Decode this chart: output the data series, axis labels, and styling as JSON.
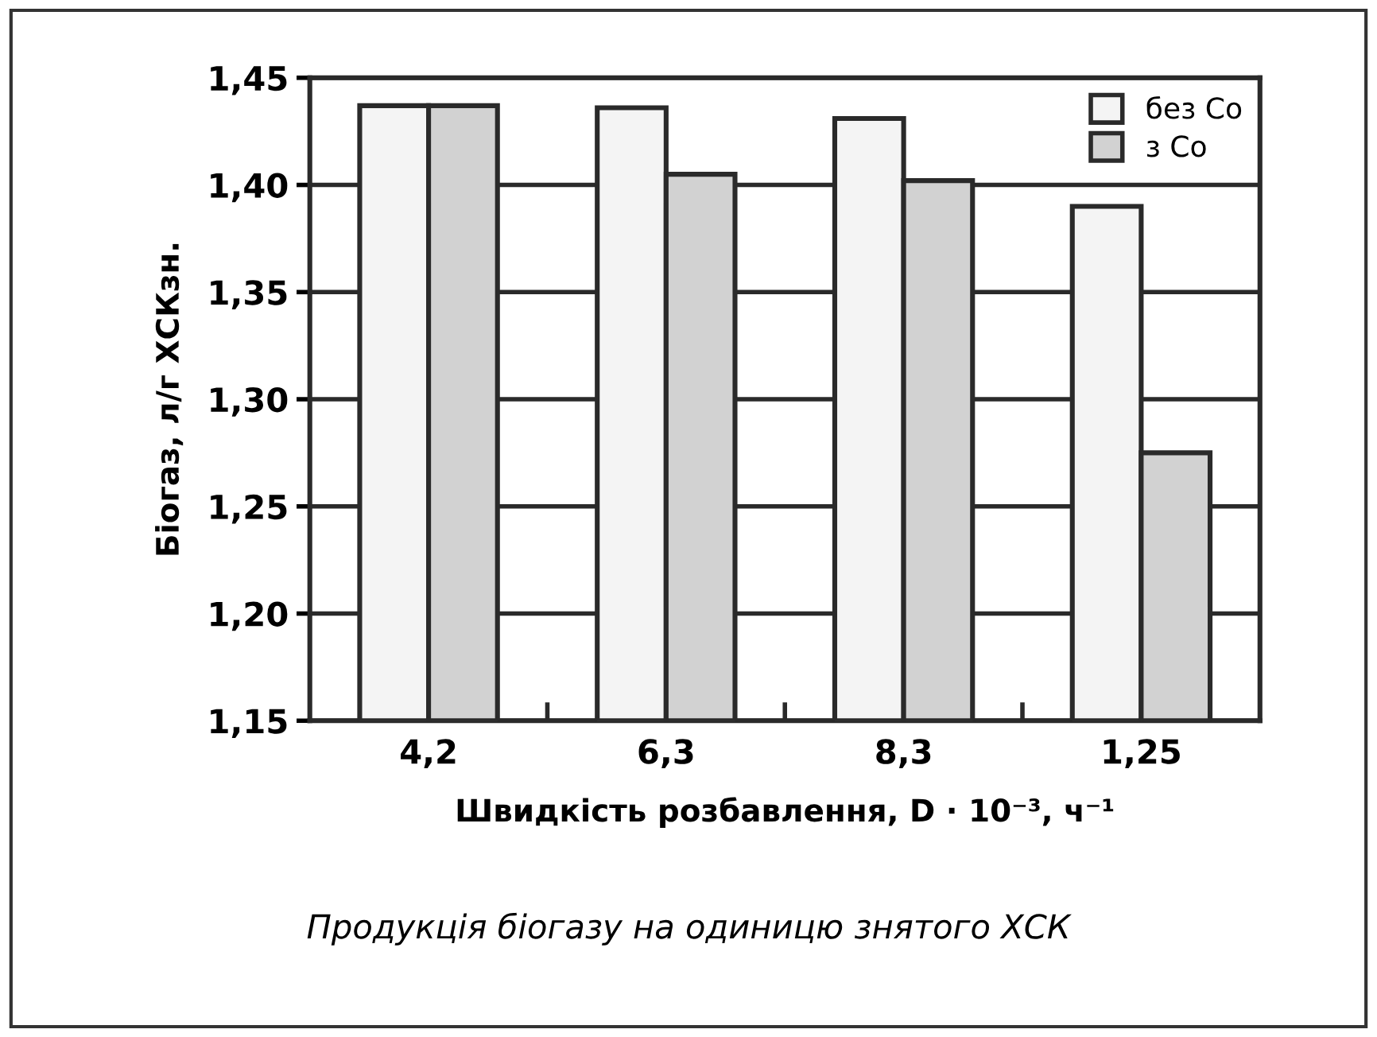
{
  "chart_data": {
    "type": "bar",
    "categories": [
      "4,2",
      "6,3",
      "8,3",
      "1,25"
    ],
    "series": [
      {
        "name": "без Со",
        "color": "#f4f4f4",
        "values": [
          1.437,
          1.436,
          1.431,
          1.39
        ]
      },
      {
        "name": "з Со",
        "color": "#d2d2d2",
        "values": [
          1.437,
          1.405,
          1.402,
          1.275
        ]
      }
    ],
    "ylim": [
      1.15,
      1.45
    ],
    "yticks": [
      {
        "value": 1.15,
        "label": "1,15"
      },
      {
        "value": 1.2,
        "label": "1,20"
      },
      {
        "value": 1.25,
        "label": "1,25"
      },
      {
        "value": 1.3,
        "label": "1,30"
      },
      {
        "value": 1.35,
        "label": "1,35"
      },
      {
        "value": 1.4,
        "label": "1,40"
      },
      {
        "value": 1.45,
        "label": "1,45"
      }
    ],
    "xlabel": "Швидкість розбавлення, D · 10⁻³, ч⁻¹",
    "ylabel": "Біогаз, л/г ХСКзн.",
    "annotations": [
      "Продукція біогазу на одиницю знятого ХСК"
    ],
    "grid": "y",
    "legend": "top right"
  }
}
